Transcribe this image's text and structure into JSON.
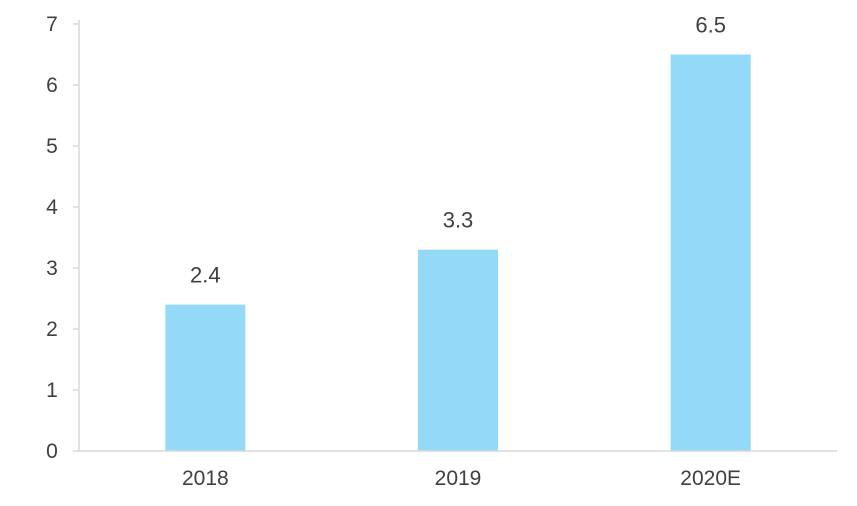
{
  "chart_data": {
    "type": "bar",
    "title": "",
    "xlabel": "",
    "ylabel": "",
    "categories": [
      "2018",
      "2019",
      "2020E"
    ],
    "values": [
      2.4,
      3.3,
      6.5
    ],
    "data_labels": [
      "2.4",
      "3.3",
      "6.5"
    ],
    "ylim": [
      0,
      7
    ],
    "y_ticks": [
      "0",
      "1",
      "2",
      "3",
      "4",
      "5",
      "6",
      "7"
    ],
    "grid": false,
    "legend": "none",
    "bar_color": "#94d9f7",
    "axis_color": "#d9d9d9",
    "text_color": "#404040"
  }
}
